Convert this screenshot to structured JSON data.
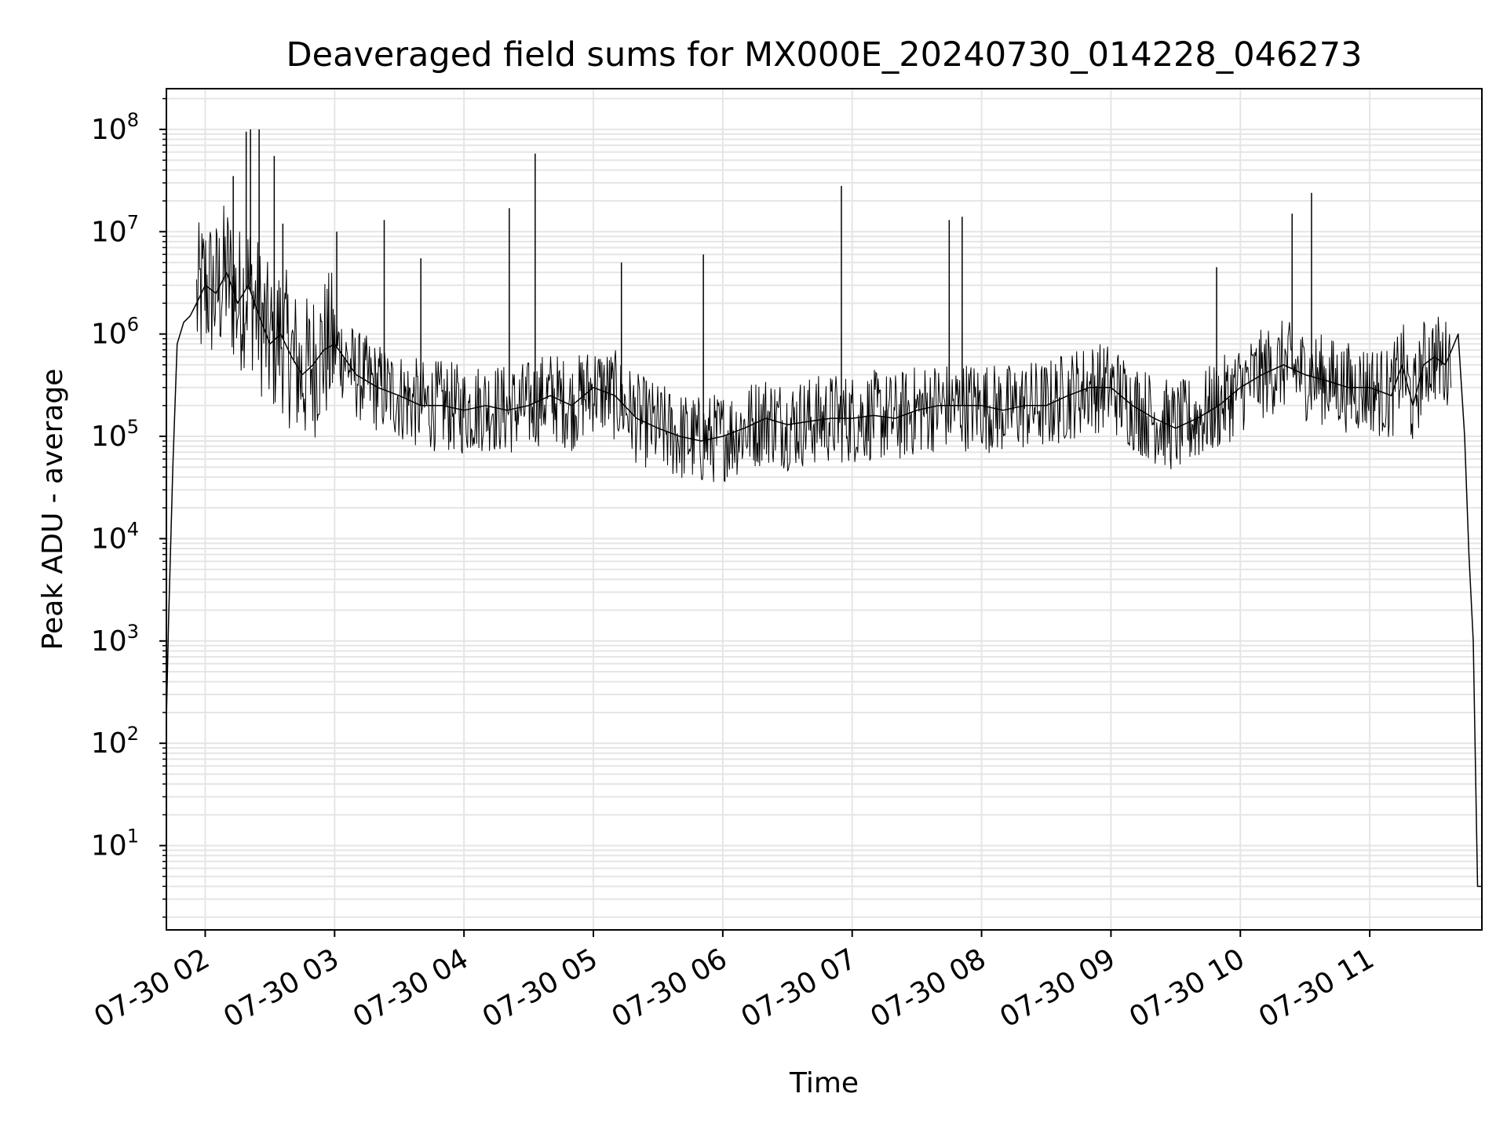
{
  "chart_data": {
    "type": "line",
    "title": "Deaveraged field sums for MX000E_20240730_014228_046273",
    "xlabel": "Time",
    "ylabel": "Peak ADU - average",
    "yscale": "log",
    "ylim": [
      1.5,
      250000000
    ],
    "xlim": [
      "07-30 01:42",
      "07-30 11:52"
    ],
    "grid": true,
    "x_ticks": [
      "07-30 02",
      "07-30 03",
      "07-30 04",
      "07-30 05",
      "07-30 06",
      "07-30 07",
      "07-30 08",
      "07-30 09",
      "07-30 10",
      "07-30 11"
    ],
    "y_ticks": [
      {
        "base": "10",
        "exp": "1"
      },
      {
        "base": "10",
        "exp": "2"
      },
      {
        "base": "10",
        "exp": "3"
      },
      {
        "base": "10",
        "exp": "4"
      },
      {
        "base": "10",
        "exp": "5"
      },
      {
        "base": "10",
        "exp": "6"
      },
      {
        "base": "10",
        "exp": "7"
      },
      {
        "base": "10",
        "exp": "8"
      }
    ],
    "line_color": "#000000",
    "grid_color": "#e5e5e5",
    "series": [
      {
        "x": [
          "07-30 01:42",
          "07-30 01:43",
          "07-30 01:45",
          "07-30 01:47",
          "07-30 01:50",
          "07-30 01:53",
          "07-30 01:56",
          "07-30 02:00",
          "07-30 02:05",
          "07-30 02:10",
          "07-30 02:15",
          "07-30 02:20",
          "07-30 02:25",
          "07-30 02:30",
          "07-30 02:35",
          "07-30 02:40",
          "07-30 02:45",
          "07-30 02:50",
          "07-30 02:55",
          "07-30 03:00",
          "07-30 03:10",
          "07-30 03:20",
          "07-30 03:30",
          "07-30 03:40",
          "07-30 03:50",
          "07-30 04:00",
          "07-30 04:10",
          "07-30 04:20",
          "07-30 04:30",
          "07-30 04:40",
          "07-30 04:50",
          "07-30 05:00",
          "07-30 05:10",
          "07-30 05:20",
          "07-30 05:30",
          "07-30 05:40",
          "07-30 05:50",
          "07-30 06:00",
          "07-30 06:10",
          "07-30 06:20",
          "07-30 06:30",
          "07-30 06:40",
          "07-30 06:50",
          "07-30 07:00",
          "07-30 07:10",
          "07-30 07:20",
          "07-30 07:30",
          "07-30 07:40",
          "07-30 07:50",
          "07-30 08:00",
          "07-30 08:10",
          "07-30 08:20",
          "07-30 08:30",
          "07-30 08:40",
          "07-30 08:50",
          "07-30 09:00",
          "07-30 09:10",
          "07-30 09:20",
          "07-30 09:30",
          "07-30 09:40",
          "07-30 09:50",
          "07-30 10:00",
          "07-30 10:10",
          "07-30 10:20",
          "07-30 10:30",
          "07-30 10:40",
          "07-30 10:50",
          "07-30 11:00",
          "07-30 11:10",
          "07-30 11:15",
          "07-30 11:20",
          "07-30 11:25",
          "07-30 11:30",
          "07-30 11:35",
          "07-30 11:38",
          "07-30 11:41",
          "07-30 11:44",
          "07-30 11:46",
          "07-30 11:48",
          "07-30 11:50",
          "07-30 11:52"
        ],
        "y": [
          170,
          1500,
          50000,
          800000,
          1300000,
          1500000,
          2000000,
          3000000,
          2500000,
          4000000,
          2000000,
          3000000,
          1500000,
          800000,
          1000000,
          600000,
          400000,
          500000,
          700000,
          800000,
          400000,
          300000,
          250000,
          200000,
          200000,
          180000,
          200000,
          180000,
          200000,
          250000,
          200000,
          300000,
          250000,
          150000,
          120000,
          100000,
          90000,
          100000,
          120000,
          150000,
          130000,
          140000,
          150000,
          150000,
          160000,
          150000,
          180000,
          200000,
          200000,
          200000,
          180000,
          200000,
          200000,
          250000,
          300000,
          300000,
          200000,
          150000,
          120000,
          150000,
          200000,
          300000,
          400000,
          500000,
          400000,
          350000,
          300000,
          300000,
          250000,
          500000,
          200000,
          500000,
          600000,
          500000,
          700000,
          1000000,
          100000,
          7000,
          1000,
          4,
          4
        ]
      }
    ],
    "spikes": [
      {
        "x": "07-30 02:19",
        "y": 95000000
      },
      {
        "x": "07-30 02:21",
        "y": 100000000
      },
      {
        "x": "07-30 02:25",
        "y": 100000000
      },
      {
        "x": "07-30 02:32",
        "y": 55000000
      },
      {
        "x": "07-30 02:13",
        "y": 35000000
      },
      {
        "x": "07-30 02:36",
        "y": 12000000
      },
      {
        "x": "07-30 03:01",
        "y": 10000000
      },
      {
        "x": "07-30 03:23",
        "y": 13000000
      },
      {
        "x": "07-30 03:40",
        "y": 5500000
      },
      {
        "x": "07-30 04:21",
        "y": 17000000
      },
      {
        "x": "07-30 04:33",
        "y": 58000000
      },
      {
        "x": "07-30 05:13",
        "y": 5000000
      },
      {
        "x": "07-30 05:51",
        "y": 6000000
      },
      {
        "x": "07-30 06:55",
        "y": 28000000
      },
      {
        "x": "07-30 07:45",
        "y": 13000000
      },
      {
        "x": "07-30 07:51",
        "y": 14000000
      },
      {
        "x": "07-30 09:49",
        "y": 4500000
      },
      {
        "x": "07-30 10:24",
        "y": 15000000
      },
      {
        "x": "07-30 10:33",
        "y": 24000000
      }
    ]
  }
}
